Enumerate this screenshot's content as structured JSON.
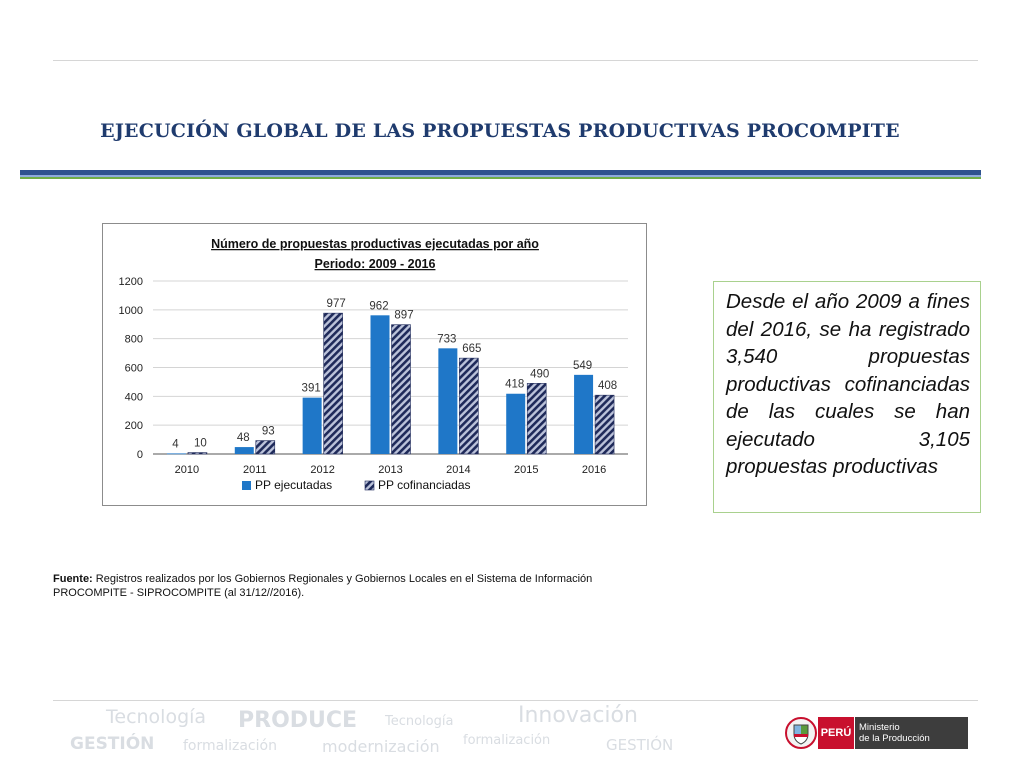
{
  "slide": {
    "title": "EJECUCIÓN GLOBAL DE LAS PROPUESTAS PRODUCTIVAS PROCOMPITE",
    "note": "Desde el año 2009 a fines del 2016, se ha registrado 3,540 propuestas productivas cofinanciadas de las cuales se han ejecutado 3,105 propuestas productivas",
    "source_label": "Fuente:",
    "source_text": "Registros realizados por los Gobiernos Regionales y Gobiernos Locales en el Sistema de Información PROCOMPITE - SIPROCOMPITE (al 31/12//2016)."
  },
  "footer": {
    "watermarks": [
      "Tecnología",
      "PRODUCE",
      "Tecnología",
      "Innovación",
      "GESTIÓN",
      "formalización",
      "modernización",
      "formalización",
      "GESTIÓN"
    ],
    "logo": {
      "country": "PERÚ",
      "ministry_line1": "Ministerio",
      "ministry_line2": "de la Producción"
    }
  },
  "chart_data": {
    "type": "bar",
    "title": "Número de propuestas productivas ejecutadas por año",
    "subtitle": "Periodo: 2009 - 2016",
    "categories": [
      "2010",
      "2011",
      "2012",
      "2013",
      "2014",
      "2015",
      "2016"
    ],
    "series": [
      {
        "name": "PP ejecutadas",
        "values": [
          4,
          48,
          391,
          962,
          733,
          418,
          549
        ],
        "color": "#1f77c8"
      },
      {
        "name": "PP cofinanciadas",
        "values": [
          10,
          93,
          977,
          897,
          665,
          490,
          408
        ],
        "color": "#1f2a5a",
        "pattern": "diagonal-hatch"
      }
    ],
    "ylim": [
      0,
      1200
    ],
    "yticks": [
      0,
      200,
      400,
      600,
      800,
      1000,
      1200
    ],
    "grid": true,
    "legend": "bottom"
  }
}
